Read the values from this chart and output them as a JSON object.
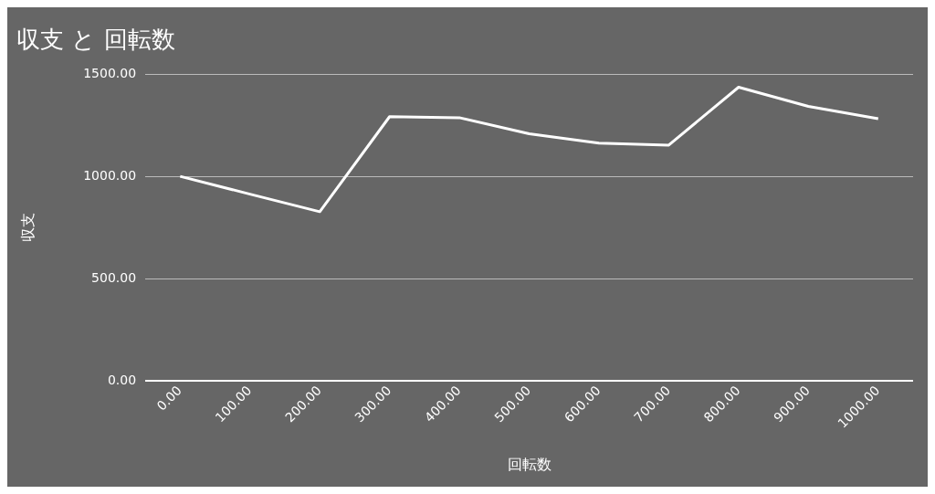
{
  "chart_data": {
    "type": "line",
    "title": "収支 と 回転数",
    "xlabel": "回転数",
    "ylabel": "収支",
    "x": [
      0,
      100,
      200,
      300,
      400,
      500,
      600,
      700,
      800,
      900,
      1000
    ],
    "series": [
      {
        "color": "#ffffff",
        "values": [
          1000,
          913,
          827,
          1292,
          1287,
          1208,
          1163,
          1153,
          1436,
          1342,
          1282
        ]
      }
    ],
    "xlim": [
      -50,
      1050
    ],
    "xticks": [
      {
        "value": 0,
        "label": "0.00"
      },
      {
        "value": 100,
        "label": "100.00"
      },
      {
        "value": 200,
        "label": "200.00"
      },
      {
        "value": 300,
        "label": "300.00"
      },
      {
        "value": 400,
        "label": "400.00"
      },
      {
        "value": 500,
        "label": "500.00"
      },
      {
        "value": 600,
        "label": "600.00"
      },
      {
        "value": 700,
        "label": "700.00"
      },
      {
        "value": 800,
        "label": "800.00"
      },
      {
        "value": 900,
        "label": "900.00"
      },
      {
        "value": 1000,
        "label": "1000.00"
      }
    ],
    "ylim": [
      0,
      1500
    ],
    "yticks": [
      {
        "value": 0,
        "label": "0.00"
      },
      {
        "value": 500,
        "label": "500.00"
      },
      {
        "value": 1000,
        "label": "1000.00"
      },
      {
        "value": 1500,
        "label": "1500.00"
      }
    ],
    "grid": "y",
    "legend": false,
    "marker": "none",
    "line_style": "solid"
  }
}
